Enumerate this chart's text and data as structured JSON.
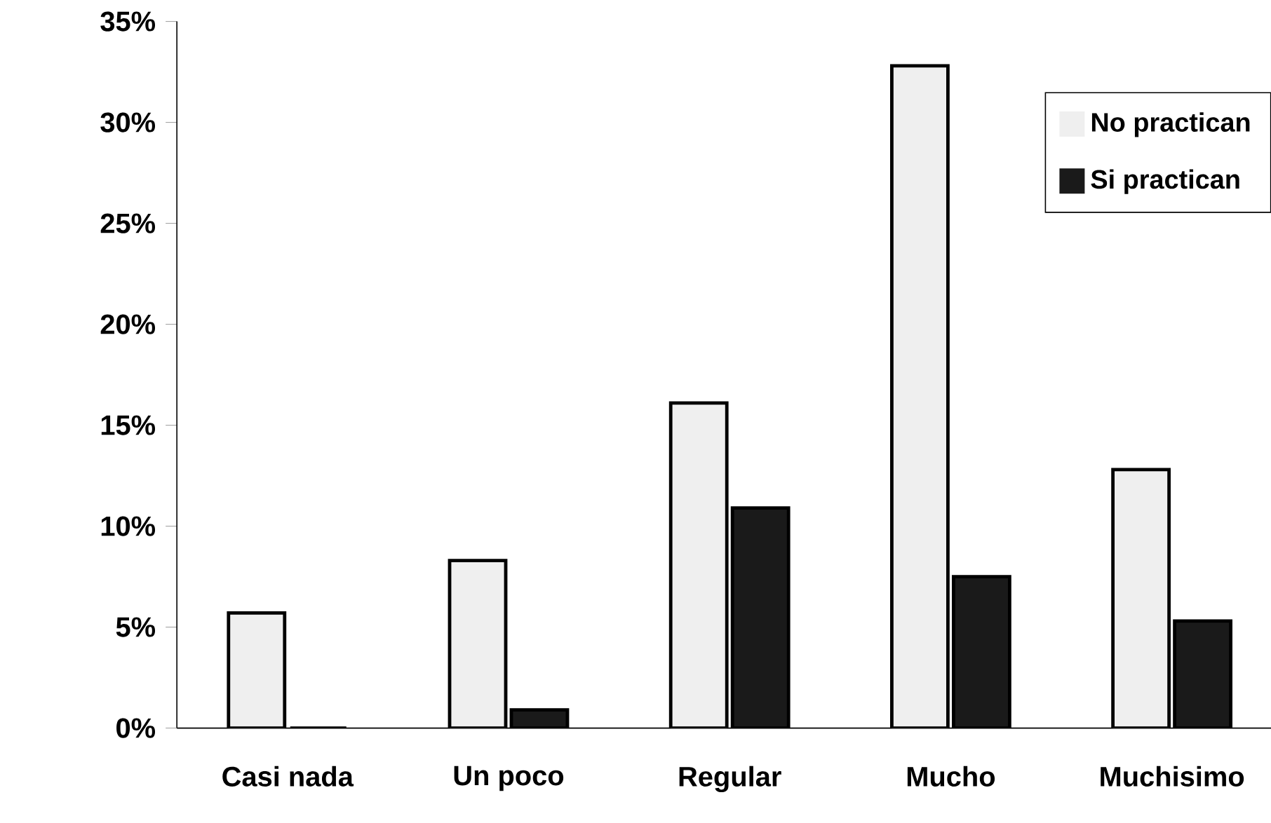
{
  "chart_data": {
    "type": "bar",
    "categories": [
      "Casi nada",
      "Un  poco",
      "Regular",
      "Mucho",
      "Muchisimo"
    ],
    "series": [
      {
        "name": "No practican",
        "color": "#efefef",
        "values": [
          5.7,
          8.3,
          16.1,
          32.8,
          12.8
        ]
      },
      {
        "name": "Si practican",
        "color": "#1a1a1a",
        "values": [
          0,
          0.9,
          10.9,
          7.5,
          5.3
        ]
      }
    ],
    "ylim": [
      0,
      35
    ],
    "yticks": [
      {
        "value": 0,
        "label": "0%"
      },
      {
        "value": 5,
        "label": "5%"
      },
      {
        "value": 10,
        "label": "10%"
      },
      {
        "value": 15,
        "label": "15%"
      },
      {
        "value": 20,
        "label": "20%"
      },
      {
        "value": 25,
        "label": "25%"
      },
      {
        "value": 30,
        "label": "30%"
      },
      {
        "value": 35,
        "label": "35%"
      }
    ],
    "legend": "top right",
    "grid": false
  }
}
